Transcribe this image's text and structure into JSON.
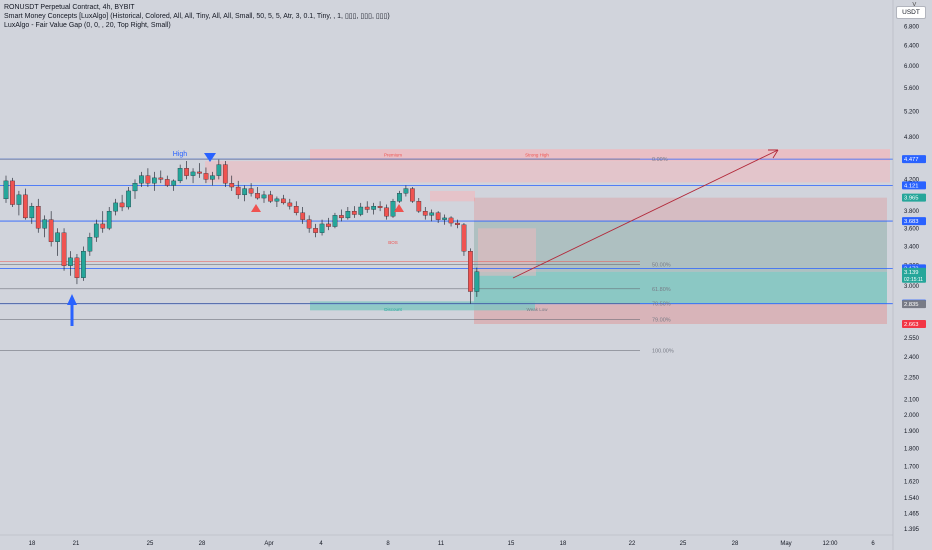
{
  "legend": {
    "line1": "RONUSDT Perpetual Contract, 4h, BYBIT",
    "line2": "Smart Money Concepts [LuxAlgo] (Historical, Colored, All, All, Tiny, All, All, Small, 50, 5, 5, Atr, 3, 0.1, Tiny, , 1, ▯▯▯, ▯▯▯, ▯▯▯)",
    "line3": "LuxAlgo - Fair Value Gap (0, 0, , 20, Top Right, Small)"
  },
  "currency_label": "USDT",
  "corner_mark": "˅",
  "colors": {
    "background": "#d1d4dc",
    "bull": "#26a69a",
    "bear": "#ef5350",
    "level_blue": "#2962ff",
    "premium_zone": "#f2b8bd",
    "discount_zone": "#7fc6c0",
    "target_arrow": "#b2293a"
  },
  "chart_data": {
    "type": "candlestick",
    "symbol": "RONUSDT",
    "timeframe": "4h",
    "exchange": "BYBIT",
    "price_scale": "log",
    "price_ticks": [
      "6.800",
      "6.400",
      "6.000",
      "5.600",
      "5.200",
      "4.800",
      "4.200",
      "3.800",
      "3.600",
      "3.400",
      "3.200",
      "3.000",
      "2.550",
      "2.400",
      "2.250",
      "2.100",
      "2.000",
      "1.900",
      "1.800",
      "1.700",
      "1.620",
      "1.540",
      "1.465",
      "1.395"
    ],
    "time_ticks": [
      "18",
      "21",
      "25",
      "28",
      "Apr",
      "4",
      "8",
      "11",
      "15",
      "18",
      "22",
      "25",
      "28",
      "May",
      "12:00",
      "6"
    ],
    "price_labels": [
      {
        "text": "4.477",
        "price": 4.477,
        "color": "#2962ff"
      },
      {
        "text": "4.121",
        "price": 4.121,
        "color": "#2962ff"
      },
      {
        "text": "3.965",
        "price": 3.965,
        "color": "#26a69a"
      },
      {
        "text": "3.683",
        "price": 3.683,
        "color": "#2962ff"
      },
      {
        "text": "3.173",
        "price": 3.173,
        "color": "#2962ff"
      },
      {
        "text": "3.139",
        "price": 3.139,
        "color": "#26a69a",
        "sub": "02:15:11"
      },
      {
        "text": "2.839",
        "price": 2.839,
        "color": "#2962ff"
      },
      {
        "text": "2.835",
        "price": 2.835,
        "color": "#787b86"
      },
      {
        "text": "2.663",
        "price": 2.663,
        "color": "#f23645"
      }
    ],
    "fib_levels": [
      {
        "label": "0.00%",
        "price": 4.477
      },
      {
        "label": "50.00%",
        "price": 3.21
      },
      {
        "label": "61.80%",
        "price": 2.975
      },
      {
        "label": "70.50%",
        "price": 2.84
      },
      {
        "label": "79.00%",
        "price": 2.7
      },
      {
        "label": "100.00%",
        "price": 2.45
      }
    ],
    "annotations": [
      {
        "text": "High",
        "price": 4.52
      },
      {
        "text": "Premium",
        "price": 4.54
      },
      {
        "text": "Strong High",
        "price": 4.54
      },
      {
        "text": "BOS",
        "price": 3.45
      },
      {
        "text": "Discount",
        "price": 2.79
      },
      {
        "text": "Weak Low",
        "price": 2.79
      }
    ],
    "candles": [
      [
        3.95,
        4.25,
        3.9,
        4.18
      ],
      [
        4.18,
        4.22,
        3.85,
        3.88
      ],
      [
        3.88,
        4.05,
        3.75,
        4.0
      ],
      [
        4.0,
        4.08,
        3.7,
        3.72
      ],
      [
        3.72,
        3.9,
        3.65,
        3.86
      ],
      [
        3.86,
        3.95,
        3.55,
        3.6
      ],
      [
        3.6,
        3.75,
        3.5,
        3.7
      ],
      [
        3.7,
        3.8,
        3.4,
        3.45
      ],
      [
        3.45,
        3.6,
        3.3,
        3.55
      ],
      [
        3.55,
        3.6,
        3.15,
        3.2
      ],
      [
        3.2,
        3.35,
        3.1,
        3.28
      ],
      [
        3.28,
        3.32,
        3.02,
        3.08
      ],
      [
        3.08,
        3.4,
        3.05,
        3.35
      ],
      [
        3.35,
        3.55,
        3.3,
        3.5
      ],
      [
        3.5,
        3.7,
        3.45,
        3.65
      ],
      [
        3.65,
        3.8,
        3.55,
        3.6
      ],
      [
        3.6,
        3.85,
        3.58,
        3.8
      ],
      [
        3.8,
        3.95,
        3.75,
        3.9
      ],
      [
        3.9,
        4.0,
        3.8,
        3.85
      ],
      [
        3.85,
        4.1,
        3.82,
        4.05
      ],
      [
        4.05,
        4.2,
        3.95,
        4.15
      ],
      [
        4.15,
        4.3,
        4.1,
        4.25
      ],
      [
        4.25,
        4.35,
        4.1,
        4.15
      ],
      [
        4.15,
        4.3,
        4.05,
        4.22
      ],
      [
        4.22,
        4.32,
        4.15,
        4.2
      ],
      [
        4.2,
        4.25,
        4.1,
        4.12
      ],
      [
        4.12,
        4.2,
        4.05,
        4.18
      ],
      [
        4.18,
        4.4,
        4.15,
        4.35
      ],
      [
        4.35,
        4.45,
        4.2,
        4.25
      ],
      [
        4.25,
        4.35,
        4.15,
        4.3
      ],
      [
        4.3,
        4.42,
        4.22,
        4.28
      ],
      [
        4.28,
        4.36,
        4.15,
        4.2
      ],
      [
        4.2,
        4.3,
        4.12,
        4.25
      ],
      [
        4.25,
        4.47,
        4.2,
        4.4
      ],
      [
        4.4,
        4.45,
        4.1,
        4.15
      ],
      [
        4.15,
        4.25,
        4.05,
        4.1
      ],
      [
        4.1,
        4.18,
        3.95,
        4.0
      ],
      [
        4.0,
        4.12,
        3.92,
        4.08
      ],
      [
        4.08,
        4.15,
        3.98,
        4.02
      ],
      [
        4.02,
        4.1,
        3.94,
        3.96
      ],
      [
        3.96,
        4.05,
        3.9,
        4.0
      ],
      [
        4.0,
        4.05,
        3.9,
        3.92
      ],
      [
        3.92,
        3.98,
        3.85,
        3.95
      ],
      [
        3.95,
        4.0,
        3.88,
        3.9
      ],
      [
        3.9,
        3.95,
        3.82,
        3.86
      ],
      [
        3.86,
        3.92,
        3.75,
        3.78
      ],
      [
        3.78,
        3.85,
        3.65,
        3.7
      ],
      [
        3.7,
        3.75,
        3.55,
        3.6
      ],
      [
        3.6,
        3.65,
        3.5,
        3.55
      ],
      [
        3.55,
        3.7,
        3.52,
        3.65
      ],
      [
        3.65,
        3.72,
        3.58,
        3.62
      ],
      [
        3.62,
        3.78,
        3.6,
        3.75
      ],
      [
        3.75,
        3.82,
        3.68,
        3.72
      ],
      [
        3.72,
        3.85,
        3.7,
        3.8
      ],
      [
        3.8,
        3.86,
        3.72,
        3.76
      ],
      [
        3.76,
        3.9,
        3.74,
        3.85
      ],
      [
        3.85,
        3.92,
        3.78,
        3.82
      ],
      [
        3.82,
        3.9,
        3.76,
        3.86
      ],
      [
        3.86,
        3.92,
        3.8,
        3.84
      ],
      [
        3.84,
        3.88,
        3.7,
        3.74
      ],
      [
        3.74,
        3.95,
        3.72,
        3.92
      ],
      [
        3.92,
        4.05,
        3.9,
        4.02
      ],
      [
        4.02,
        4.12,
        3.98,
        4.08
      ],
      [
        4.08,
        4.1,
        3.9,
        3.92
      ],
      [
        3.92,
        3.96,
        3.78,
        3.8
      ],
      [
        3.8,
        3.85,
        3.7,
        3.75
      ],
      [
        3.75,
        3.82,
        3.68,
        3.78
      ],
      [
        3.78,
        3.8,
        3.66,
        3.7
      ],
      [
        3.7,
        3.76,
        3.64,
        3.72
      ],
      [
        3.72,
        3.74,
        3.62,
        3.66
      ],
      [
        3.66,
        3.7,
        3.6,
        3.64
      ],
      [
        3.64,
        3.66,
        3.3,
        3.35
      ],
      [
        3.35,
        3.38,
        2.84,
        2.95
      ],
      [
        2.95,
        3.18,
        2.9,
        3.14
      ]
    ]
  }
}
